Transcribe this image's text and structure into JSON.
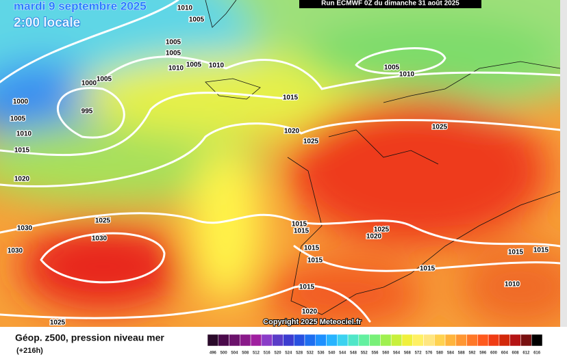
{
  "header": {
    "date": "mardi 9 septembre 2025",
    "time": "2:00 locale",
    "run": "Run ECMWF 0Z du dimanche 31 août 2025"
  },
  "isobar_labels": [
    "1010",
    "1005",
    "1005",
    "1005",
    "1010",
    "1005",
    "1010",
    "1005",
    "1000",
    "995",
    "1000",
    "1005",
    "1010",
    "1015",
    "1020",
    "1015",
    "1020",
    "1025",
    "1005",
    "1010",
    "1025",
    "1025",
    "1030",
    "1030",
    "1030",
    "1015",
    "1015",
    "1015",
    "1015",
    "1025",
    "1020",
    "1015",
    "1015",
    "1015",
    "1010",
    "1015",
    "1020",
    "1025"
  ],
  "copyright": "Copyright 2025 Meteociel.fr",
  "legend": {
    "title": "Géop. z500, pression niveau mer",
    "lead": "(+216h)"
  },
  "scale": {
    "values": [
      496,
      500,
      504,
      508,
      512,
      516,
      520,
      524,
      528,
      532,
      536,
      540,
      544,
      548,
      552,
      556,
      560,
      564,
      568,
      572,
      576,
      580,
      584,
      588,
      592,
      596,
      600,
      604,
      608,
      612,
      616
    ],
    "colors": [
      "#2a0a2a",
      "#4b0a4b",
      "#6b126b",
      "#8a1a8a",
      "#a020a0",
      "#8a3cc8",
      "#5a3cc8",
      "#3c3cd0",
      "#2850e0",
      "#1e6ef0",
      "#1e90ff",
      "#28b4ff",
      "#3cd2f0",
      "#50e6c8",
      "#64f0a0",
      "#78f078",
      "#a0f050",
      "#c8f03c",
      "#f0f03c",
      "#fff064",
      "#ffe680",
      "#ffd250",
      "#ffb43c",
      "#ff9632",
      "#ff7828",
      "#ff5a1e",
      "#f03c14",
      "#d2280a",
      "#b41414",
      "#781010",
      "#000000"
    ]
  }
}
